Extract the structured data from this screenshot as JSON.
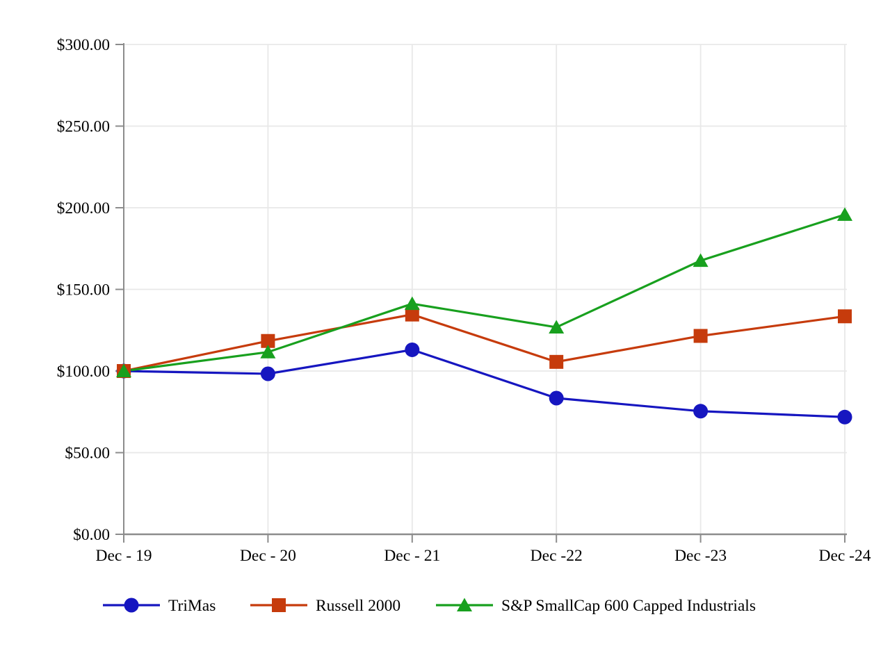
{
  "chart_data": {
    "type": "line",
    "categories": [
      "Dec - 19",
      "Dec - 20",
      "Dec - 21",
      "Dec -22",
      "Dec -23",
      "Dec -24"
    ],
    "series": [
      {
        "name": "TriMas",
        "marker": "circle",
        "color": "#1616C0",
        "values": [
          100.0,
          98.3,
          113.0,
          83.4,
          75.4,
          71.8
        ]
      },
      {
        "name": "Russell 2000",
        "marker": "square",
        "color": "#C63B0C",
        "values": [
          100.0,
          118.4,
          134.6,
          105.6,
          121.5,
          133.5
        ]
      },
      {
        "name": "S&P SmallCap 600 Capped Industrials",
        "marker": "triangle",
        "color": "#18A01E",
        "values": [
          100.0,
          111.6,
          141.2,
          126.8,
          167.6,
          195.8
        ]
      }
    ],
    "y_axis": {
      "min": 0,
      "max": 300,
      "step": 50,
      "tick_labels": [
        "$0.00",
        "$50.00",
        "$100.00",
        "$150.00",
        "$200.00",
        "$250.00",
        "$300.00"
      ]
    },
    "title": "",
    "xlabel": "",
    "ylabel": "",
    "grid": true,
    "legend_position": "bottom"
  },
  "colors": {
    "background": "#FFFFFF",
    "gridline": "#E8E8E8",
    "axis": "#8C8C8C",
    "text": "#000000"
  }
}
